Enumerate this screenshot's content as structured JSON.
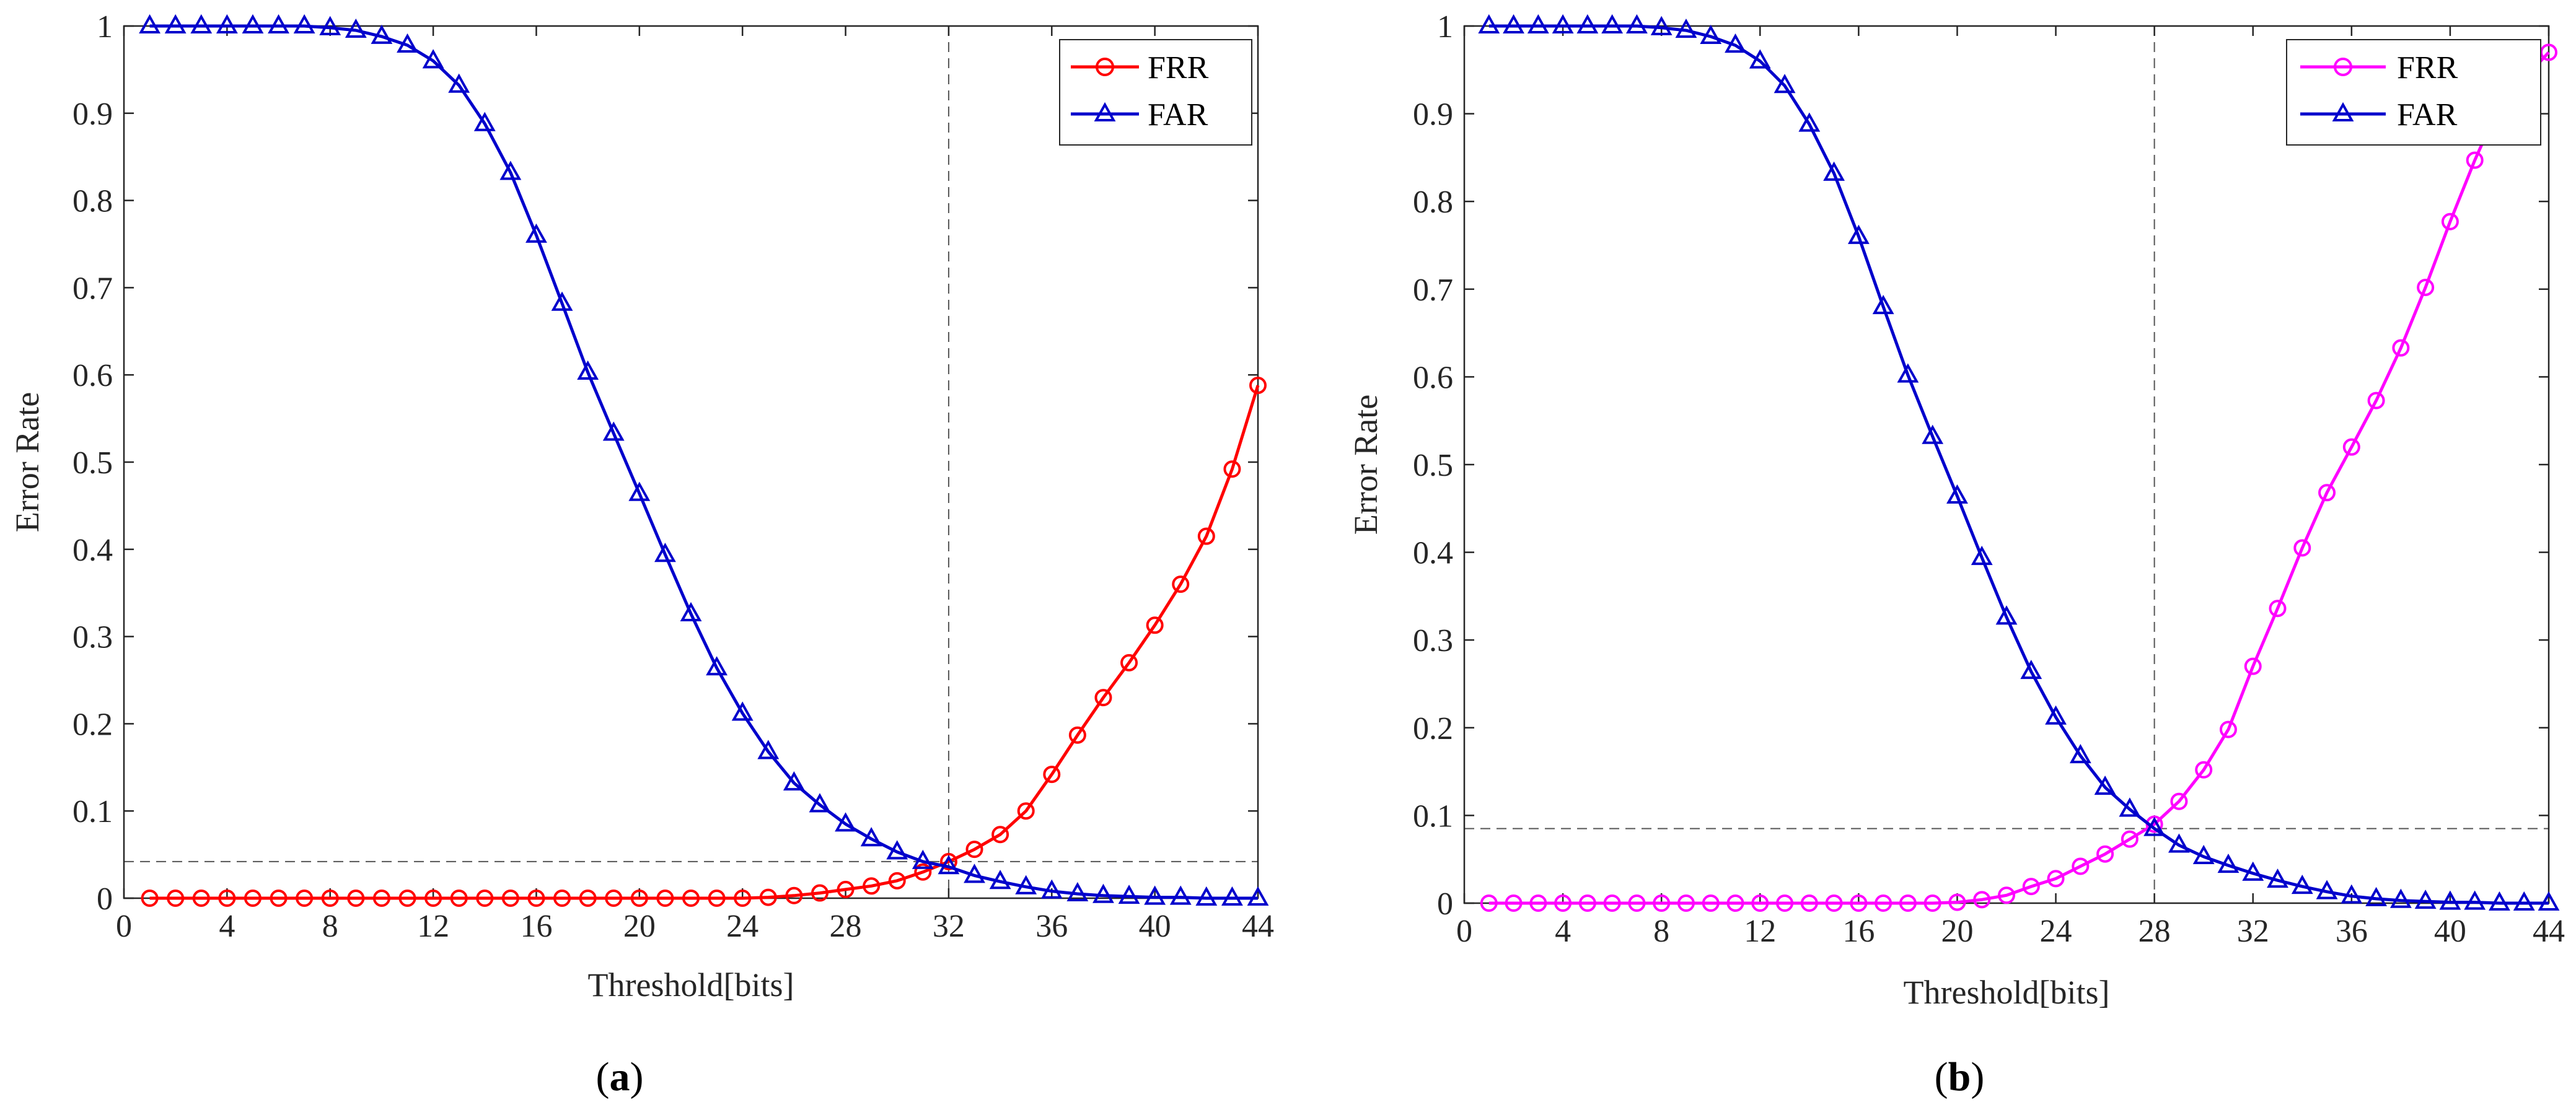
{
  "chart_data": [
    {
      "type": "line",
      "panel_label": "a",
      "xlabel": "Threshold[bits]",
      "ylabel": "Error Rate",
      "xlim": [
        0,
        44
      ],
      "ylim": [
        0,
        1
      ],
      "xticks": [
        0,
        4,
        8,
        12,
        16,
        20,
        24,
        28,
        32,
        36,
        40,
        44
      ],
      "yticks": [
        0,
        0.1,
        0.2,
        0.3,
        0.4,
        0.5,
        0.6,
        0.7,
        0.8,
        0.9,
        1
      ],
      "legend": "top-right",
      "crossover": {
        "x": 32,
        "y": 0.042
      },
      "x": [
        1,
        2,
        3,
        4,
        5,
        6,
        7,
        8,
        9,
        10,
        11,
        12,
        13,
        14,
        15,
        16,
        17,
        18,
        19,
        20,
        21,
        22,
        23,
        24,
        25,
        26,
        27,
        28,
        29,
        30,
        31,
        32,
        33,
        34,
        35,
        36,
        37,
        38,
        39,
        40,
        41,
        42,
        43,
        44
      ],
      "series": [
        {
          "name": "FRR",
          "color": "#ff0000",
          "marker": "circle",
          "values": [
            0,
            0,
            0,
            0,
            0,
            0,
            0,
            0,
            0,
            0,
            0,
            0,
            0,
            0,
            0,
            0,
            0,
            0,
            0,
            0,
            0,
            0,
            0,
            0,
            0.001,
            0.003,
            0.006,
            0.01,
            0.014,
            0.02,
            0.03,
            0.042,
            0.056,
            0.073,
            0.1,
            0.142,
            0.187,
            0.23,
            0.27,
            0.313,
            0.36,
            0.415,
            0.492,
            0.588
          ]
        },
        {
          "name": "FAR",
          "color": "#0000cc",
          "marker": "triangle",
          "values": [
            1,
            1,
            1,
            1,
            1,
            1,
            1,
            0.998,
            0.995,
            0.988,
            0.978,
            0.96,
            0.932,
            0.888,
            0.832,
            0.76,
            0.682,
            0.603,
            0.533,
            0.464,
            0.394,
            0.326,
            0.264,
            0.212,
            0.168,
            0.132,
            0.107,
            0.085,
            0.068,
            0.053,
            0.042,
            0.036,
            0.026,
            0.019,
            0.013,
            0.008,
            0.005,
            0.003,
            0.002,
            0.001,
            0.001,
            0,
            0,
            0
          ]
        }
      ]
    },
    {
      "type": "line",
      "panel_label": "b",
      "xlabel": "Threshold[bits]",
      "ylabel": "Error Rate",
      "xlim": [
        0,
        44
      ],
      "ylim": [
        0,
        1
      ],
      "xticks": [
        0,
        4,
        8,
        12,
        16,
        20,
        24,
        28,
        32,
        36,
        40,
        44
      ],
      "yticks": [
        0,
        0.1,
        0.2,
        0.3,
        0.4,
        0.5,
        0.6,
        0.7,
        0.8,
        0.9,
        1
      ],
      "legend": "top-right",
      "crossover": {
        "x": 28,
        "y": 0.085
      },
      "x": [
        1,
        2,
        3,
        4,
        5,
        6,
        7,
        8,
        9,
        10,
        11,
        12,
        13,
        14,
        15,
        16,
        17,
        18,
        19,
        20,
        21,
        22,
        23,
        24,
        25,
        26,
        27,
        28,
        29,
        30,
        31,
        32,
        33,
        34,
        35,
        36,
        37,
        38,
        39,
        40,
        41,
        42,
        43,
        44
      ],
      "series": [
        {
          "name": "FRR",
          "color": "#ff00ff",
          "marker": "circle",
          "values": [
            0,
            0,
            0,
            0,
            0,
            0,
            0,
            0,
            0,
            0,
            0,
            0,
            0,
            0,
            0,
            0,
            0,
            0,
            0,
            0.001,
            0.004,
            0.009,
            0.019,
            0.028,
            0.042,
            0.056,
            0.073,
            0.09,
            0.116,
            0.152,
            0.198,
            0.27,
            0.336,
            0.405,
            0.468,
            0.52,
            0.573,
            0.633,
            0.702,
            0.777,
            0.847,
            0.91,
            0.94,
            0.97
          ]
        },
        {
          "name": "FAR",
          "color": "#0000cc",
          "marker": "triangle",
          "values": [
            1,
            1,
            1,
            1,
            1,
            1,
            1,
            0.998,
            0.995,
            0.988,
            0.978,
            0.96,
            0.932,
            0.888,
            0.832,
            0.76,
            0.68,
            0.602,
            0.532,
            0.464,
            0.394,
            0.326,
            0.264,
            0.212,
            0.168,
            0.132,
            0.107,
            0.085,
            0.066,
            0.053,
            0.043,
            0.034,
            0.026,
            0.019,
            0.013,
            0.008,
            0.005,
            0.003,
            0.002,
            0.001,
            0.001,
            0,
            0,
            0
          ]
        }
      ]
    }
  ]
}
